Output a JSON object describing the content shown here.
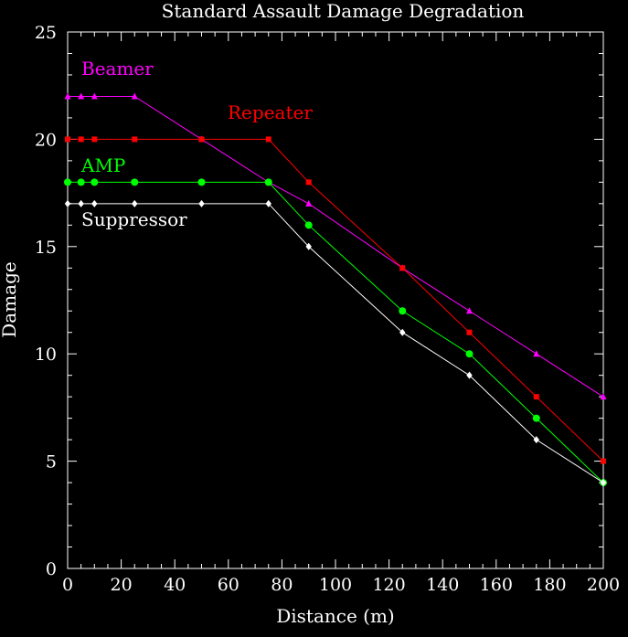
{
  "chart_data": {
    "type": "line",
    "title": "Standard Assault Damage Degradation",
    "xlabel": "Distance (m)",
    "ylabel": "Damage",
    "xlim": [
      0,
      200
    ],
    "ylim": [
      0,
      25
    ],
    "x_ticks": [
      0,
      20,
      40,
      60,
      80,
      100,
      120,
      140,
      160,
      180,
      200
    ],
    "y_ticks": [
      0,
      5,
      10,
      15,
      20,
      25
    ],
    "grid": false,
    "legend": "inline-top-left",
    "background": "#000000",
    "foreground": "#ffffff",
    "series": [
      {
        "name": "Beamer",
        "color": "#ff00ff",
        "marker": "triangle",
        "x": [
          0,
          5,
          10,
          25,
          50,
          75,
          90,
          125,
          150,
          175,
          200
        ],
        "y": [
          22,
          22,
          22,
          22,
          20,
          18,
          17,
          14,
          12,
          10,
          8
        ]
      },
      {
        "name": "Repeater",
        "color": "#ff0000",
        "marker": "square",
        "x": [
          0,
          5,
          10,
          25,
          50,
          75,
          90,
          125,
          150,
          175,
          200
        ],
        "y": [
          20,
          20,
          20,
          20,
          20,
          20,
          18,
          14,
          11,
          8,
          5
        ]
      },
      {
        "name": "AMP",
        "color": "#00ff00",
        "marker": "circle",
        "x": [
          0,
          5,
          10,
          25,
          50,
          75,
          90,
          125,
          150,
          175,
          200
        ],
        "y": [
          18,
          18,
          18,
          18,
          18,
          18,
          16,
          12,
          10,
          7,
          4
        ]
      },
      {
        "name": "Suppressor",
        "color": "#ffffff",
        "marker": "diamond",
        "x": [
          0,
          5,
          10,
          25,
          50,
          75,
          90,
          125,
          150,
          175,
          200
        ],
        "y": [
          17,
          17,
          17,
          17,
          17,
          17,
          15,
          11,
          9,
          6,
          4
        ]
      }
    ]
  }
}
